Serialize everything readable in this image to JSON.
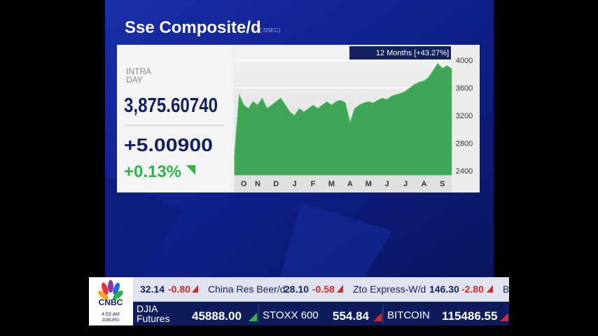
{
  "header": {
    "title": "Sse Composite/d",
    "symbol": "(.SSEC)"
  },
  "quote": {
    "label_line1": "INTRA",
    "label_line2": "DAY",
    "price": "3,875.60740",
    "change": "+5.00900",
    "change_pct": "+0.13%"
  },
  "chart_data": {
    "type": "area",
    "badge": "12 Months [+43.27%]",
    "categories": [
      null,
      null,
      "O",
      null,
      null,
      "N",
      null,
      null,
      null,
      "D",
      null,
      null,
      null,
      "J",
      null,
      null,
      null,
      "F",
      null,
      null,
      null,
      "M",
      null,
      null,
      null,
      "A",
      null,
      null,
      null,
      "M",
      null,
      null,
      null,
      "J",
      null,
      null,
      null,
      "J",
      null,
      null,
      null,
      "A",
      null,
      null,
      null,
      "S",
      null,
      null
    ],
    "values": [
      2650,
      3500,
      3350,
      3300,
      3400,
      3350,
      3450,
      3300,
      3350,
      3400,
      3450,
      3350,
      3250,
      3200,
      3300,
      3250,
      3300,
      3350,
      3300,
      3350,
      3400,
      3350,
      3400,
      3420,
      3380,
      3100,
      3300,
      3350,
      3380,
      3400,
      3380,
      3420,
      3450,
      3430,
      3480,
      3500,
      3520,
      3550,
      3600,
      3650,
      3680,
      3700,
      3750,
      3850,
      3950,
      3880,
      3920,
      3876
    ],
    "color": "#3fa555",
    "ylim": [
      2340,
      4200
    ],
    "yticks": [
      2400,
      2800,
      3200,
      3600,
      4000
    ],
    "grid": true
  },
  "ticker": {
    "row1": [
      "32.14",
      "-0.80",
      "China Res Beer/d",
      "28.10",
      "-0.58",
      "Zto Express-W/d",
      "146.30",
      "-2.80",
      "B"
    ],
    "row2": [
      "DJIA",
      "Futures",
      "45888.00",
      "STOXX 600",
      "554.84",
      "BITCOIN",
      "115486.55"
    ],
    "logo": "CNBC",
    "time": "4:53 AM",
    "city": "JOBURG"
  }
}
